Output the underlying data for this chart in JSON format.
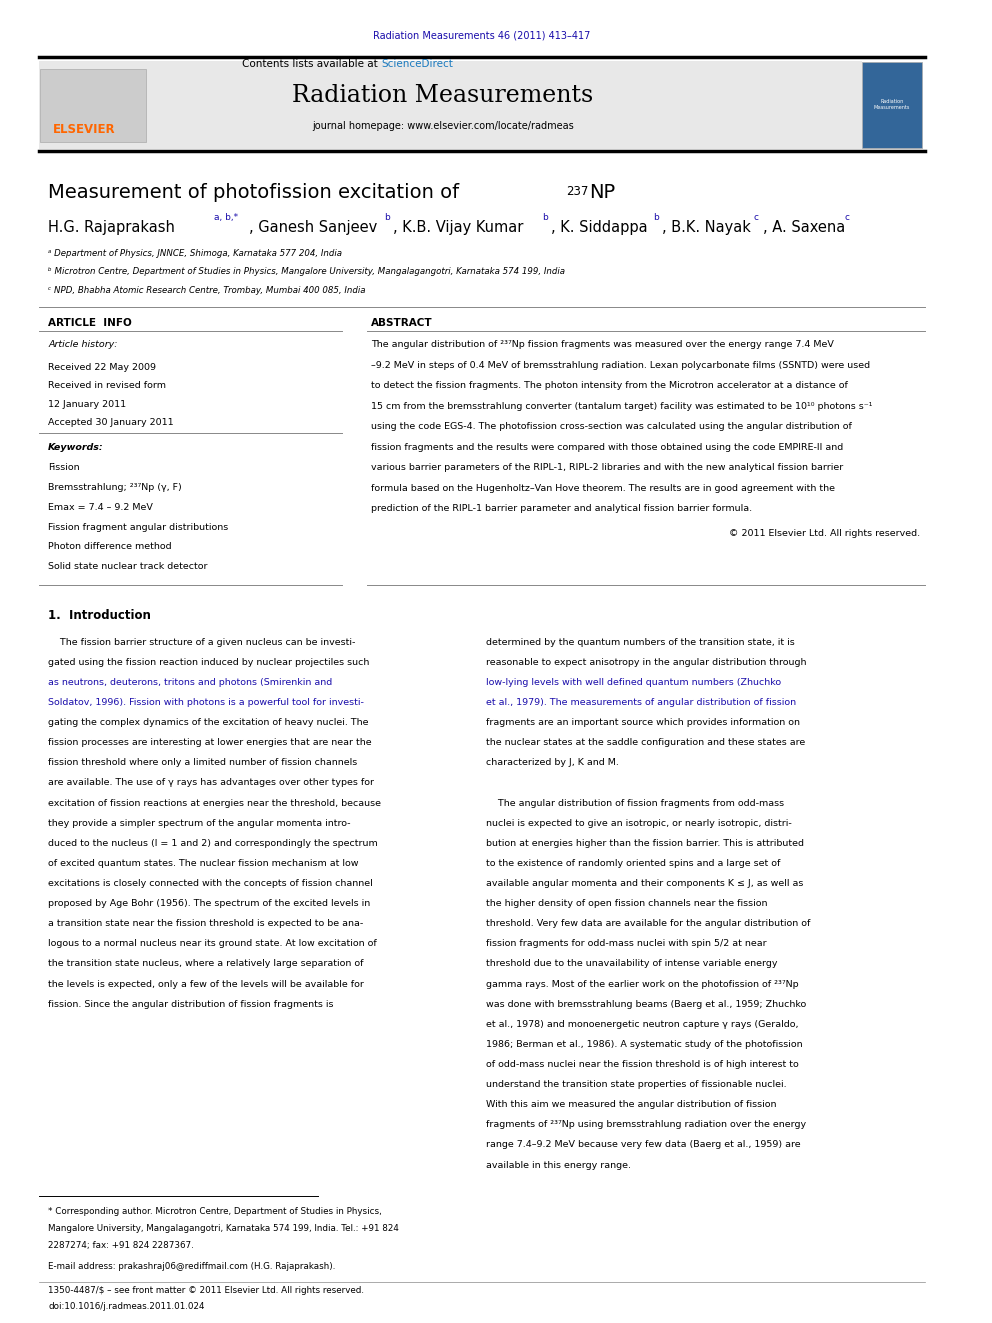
{
  "page_width": 9.92,
  "page_height": 13.23,
  "bg_color": "#ffffff",
  "top_journal_ref": "Radiation Measurements 46 (2011) 413–417",
  "top_journal_ref_color": "#1a0dab",
  "header_bg": "#e8e8e8",
  "journal_name": "Radiation Measurements",
  "journal_url": "journal homepage: www.elsevier.com/locate/radmeas",
  "paper_title_main": "Measurement of photofission excitation of ",
  "paper_title_super": "237",
  "paper_title_element": "NP",
  "affil_a": "ᵃ Department of Physics, JNNCE, Shimoga, Karnataka 577 204, India",
  "affil_b": "ᵇ Microtron Centre, Department of Studies in Physics, Mangalore University, Mangalagangotri, Karnataka 574 199, India",
  "affil_c": "ᶜ NPD, Bhabha Atomic Research Centre, Trombay, Mumbai 400 085, India",
  "article_info_title": "ARTICLE  INFO",
  "abstract_title": "ABSTRACT",
  "article_history_label": "Article history:",
  "received": "Received 22 May 2009",
  "received_revised": "Received in revised form",
  "received_revised2": "12 January 2011",
  "accepted": "Accepted 30 January 2011",
  "keywords_label": "Keywords:",
  "keyword1": "Fission",
  "keyword2": "Bremsstrahlung; ²³⁷Np (γ, F)",
  "keyword3": "Emax = 7.4 – 9.2 MeV",
  "keyword4": "Fission fragment angular distributions",
  "keyword5": "Photon difference method",
  "keyword6": "Solid state nuclear track detector",
  "abstract_text": "The angular distribution of ²³⁷Np fission fragments was measured over the energy range 7.4 MeV\n–9.2 MeV in steps of 0.4 MeV of bremsstrahlung radiation. Lexan polycarbonate films (SSNTD) were used\nto detect the fission fragments. The photon intensity from the Microtron accelerator at a distance of\n15 cm from the bremsstrahlung converter (tantalum target) facility was estimated to be 10¹⁰ photons s⁻¹\nusing the code EGS-4. The photofission cross-section was calculated using the angular distribution of\nfission fragments and the results were compared with those obtained using the code EMPIRE-II and\nvarious barrier parameters of the RIPL-1, RIPL-2 libraries and with the new analytical fission barrier\nformula based on the Hugenholtz–Van Hove theorem. The results are in good agreement with the\nprediction of the RIPL-1 barrier parameter and analytical fission barrier formula.",
  "copyright": "© 2011 Elsevier Ltd. All rights reserved.",
  "section1_title": "1.  Introduction",
  "intro_col1_lines": [
    "    The fission barrier structure of a given nucleus can be investi-",
    "gated using the fission reaction induced by nuclear projectiles such",
    "as neutrons, deuterons, tritons and photons (Smirenkin and",
    "Soldatov, 1996). Fission with photons is a powerful tool for investi-",
    "gating the complex dynamics of the excitation of heavy nuclei. The",
    "fission processes are interesting at lower energies that are near the",
    "fission threshold where only a limited number of fission channels",
    "are available. The use of γ rays has advantages over other types for",
    "excitation of fission reactions at energies near the threshold, because",
    "they provide a simpler spectrum of the angular momenta intro-",
    "duced to the nucleus (l = 1 and 2) and correspondingly the spectrum",
    "of excited quantum states. The nuclear fission mechanism at low",
    "excitations is closely connected with the concepts of fission channel",
    "proposed by Age Bohr (1956). The spectrum of the excited levels in",
    "a transition state near the fission threshold is expected to be ana-",
    "logous to a normal nucleus near its ground state. At low excitation of",
    "the transition state nucleus, where a relatively large separation of",
    "the levels is expected, only a few of the levels will be available for",
    "fission. Since the angular distribution of fission fragments is"
  ],
  "intro_col1_link_lines": [
    2,
    3
  ],
  "intro_col2_lines": [
    "determined by the quantum numbers of the transition state, it is",
    "reasonable to expect anisotropy in the angular distribution through",
    "low-lying levels with well defined quantum numbers (Zhuchko",
    "et al., 1979). The measurements of angular distribution of fission",
    "fragments are an important source which provides information on",
    "the nuclear states at the saddle configuration and these states are",
    "characterized by J, K and M.",
    "",
    "    The angular distribution of fission fragments from odd-mass",
    "nuclei is expected to give an isotropic, or nearly isotropic, distri-",
    "bution at energies higher than the fission barrier. This is attributed",
    "to the existence of randomly oriented spins and a large set of",
    "available angular momenta and their components K ≤ J, as well as",
    "the higher density of open fission channels near the fission",
    "threshold. Very few data are available for the angular distribution of",
    "fission fragments for odd-mass nuclei with spin 5/2 at near",
    "threshold due to the unavailability of intense variable energy",
    "gamma rays. Most of the earlier work on the photofission of ²³⁷Np",
    "was done with bremsstrahlung beams (Baerg et al., 1959; Zhuchko",
    "et al., 1978) and monoenergetic neutron capture γ rays (Geraldo,",
    "1986; Berman et al., 1986). A systematic study of the photofission",
    "of odd-mass nuclei near the fission threshold is of high interest to",
    "understand the transition state properties of fissionable nuclei.",
    "With this aim we measured the angular distribution of fission",
    "fragments of ²³⁷Np using bremsstrahlung radiation over the energy",
    "range 7.4–9.2 MeV because very few data (Baerg et al., 1959) are",
    "available in this energy range."
  ],
  "intro_col2_link_lines": [
    2,
    3
  ],
  "footnote_lines": [
    "* Corresponding author. Microtron Centre, Department of Studies in Physics,",
    "Mangalore University, Mangalagangotri, Karnataka 574 199, India. Tel.: +91 824",
    "2287274; fax: +91 824 2287367."
  ],
  "footnote_email": "E-mail address: prakashraj06@rediffmail.com (H.G. Rajaprakash).",
  "bottom_line1": "1350-4487/$ – see front matter © 2011 Elsevier Ltd. All rights reserved.",
  "bottom_line2": "doi:10.1016/j.radmeas.2011.01.024",
  "elsevier_color": "#FF6600",
  "sciencedirect_color": "#1a7abf",
  "link_color": "#1a0dab"
}
